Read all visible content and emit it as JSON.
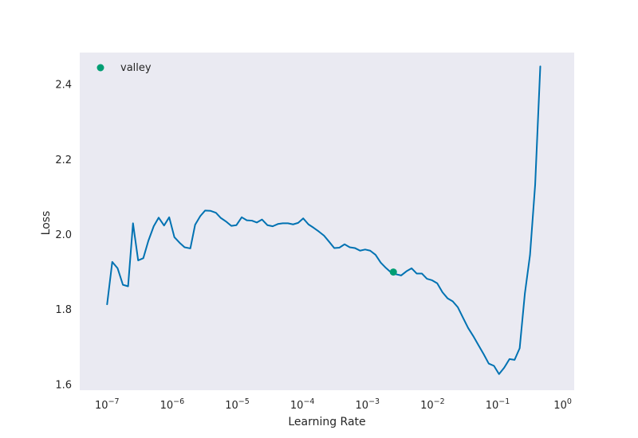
{
  "chart_data": {
    "type": "line",
    "xlabel": "Learning Rate",
    "ylabel": "Loss",
    "x_scale": "log",
    "xlim": [
      3.8e-08,
      1.5
    ],
    "ylim": [
      1.585,
      2.485
    ],
    "x_ticks": [
      {
        "value": 1e-07,
        "base": "10",
        "exp": "−7"
      },
      {
        "value": 1e-06,
        "base": "10",
        "exp": "−6"
      },
      {
        "value": 1e-05,
        "base": "10",
        "exp": "−5"
      },
      {
        "value": 0.0001,
        "base": "10",
        "exp": "−4"
      },
      {
        "value": 0.001,
        "base": "10",
        "exp": "−3"
      },
      {
        "value": 0.01,
        "base": "10",
        "exp": "−2"
      },
      {
        "value": 0.1,
        "base": "10",
        "exp": "−1"
      },
      {
        "value": 1,
        "base": "10",
        "exp": "0"
      }
    ],
    "y_ticks": [
      {
        "value": 1.6,
        "label": "1.6"
      },
      {
        "value": 1.8,
        "label": "1.8"
      },
      {
        "value": 2.0,
        "label": "2.0"
      },
      {
        "value": 2.2,
        "label": "2.2"
      },
      {
        "value": 2.4,
        "label": "2.4"
      }
    ],
    "grid": false,
    "background": "#eaeaf2",
    "legend": {
      "position": "upper-left",
      "entries": [
        {
          "label": "valley",
          "color": "#009e73",
          "marker": "circle"
        }
      ]
    },
    "series": [
      {
        "color": "#0072b2",
        "points": [
          [
            1e-07,
            1.814
          ],
          [
            1.2e-07,
            1.927
          ],
          [
            1.45e-07,
            1.91
          ],
          [
            1.75e-07,
            1.866
          ],
          [
            2.1e-07,
            1.862
          ],
          [
            2.5e-07,
            2.03
          ],
          [
            3e-07,
            1.931
          ],
          [
            3.6e-07,
            1.937
          ],
          [
            4.3e-07,
            1.983
          ],
          [
            5.2e-07,
            2.022
          ],
          [
            6.2e-07,
            2.045
          ],
          [
            7.5e-07,
            2.024
          ],
          [
            9e-07,
            2.046
          ],
          [
            1.08e-06,
            1.993
          ],
          [
            1.3e-06,
            1.978
          ],
          [
            1.55e-06,
            1.966
          ],
          [
            1.9e-06,
            1.963
          ],
          [
            2.25e-06,
            2.026
          ],
          [
            2.7e-06,
            2.049
          ],
          [
            3.2e-06,
            2.064
          ],
          [
            3.9e-06,
            2.063
          ],
          [
            4.7e-06,
            2.058
          ],
          [
            5.6e-06,
            2.044
          ],
          [
            6.8e-06,
            2.034
          ],
          [
            8.1e-06,
            2.023
          ],
          [
            9.7e-06,
            2.025
          ],
          [
            1.17e-05,
            2.046
          ],
          [
            1.4e-05,
            2.038
          ],
          [
            1.68e-05,
            2.037
          ],
          [
            2e-05,
            2.032
          ],
          [
            2.4e-05,
            2.04
          ],
          [
            2.9e-05,
            2.025
          ],
          [
            3.5e-05,
            2.022
          ],
          [
            4.2e-05,
            2.028
          ],
          [
            5e-05,
            2.03
          ],
          [
            6e-05,
            2.03
          ],
          [
            7.2e-05,
            2.027
          ],
          [
            8.6e-05,
            2.031
          ],
          [
            0.000103,
            2.043
          ],
          [
            0.000124,
            2.027
          ],
          [
            0.000149,
            2.018
          ],
          [
            0.000179,
            2.008
          ],
          [
            0.000215,
            1.997
          ],
          [
            0.000257,
            1.981
          ],
          [
            0.000309,
            1.964
          ],
          [
            0.00037,
            1.965
          ],
          [
            0.000445,
            1.974
          ],
          [
            0.000534,
            1.966
          ],
          [
            0.00064,
            1.964
          ],
          [
            0.00077,
            1.957
          ],
          [
            0.00092,
            1.96
          ],
          [
            0.0011,
            1.957
          ],
          [
            0.00133,
            1.946
          ],
          [
            0.0016,
            1.925
          ],
          [
            0.00192,
            1.911
          ],
          [
            0.0023,
            1.899
          ],
          [
            0.00276,
            1.894
          ],
          [
            0.0033,
            1.891
          ],
          [
            0.00397,
            1.902
          ],
          [
            0.00477,
            1.91
          ],
          [
            0.0057,
            1.896
          ],
          [
            0.00685,
            1.896
          ],
          [
            0.0082,
            1.882
          ],
          [
            0.00985,
            1.878
          ],
          [
            0.0118,
            1.87
          ],
          [
            0.0142,
            1.846
          ],
          [
            0.017,
            1.83
          ],
          [
            0.0204,
            1.822
          ],
          [
            0.0245,
            1.806
          ],
          [
            0.0294,
            1.778
          ],
          [
            0.0352,
            1.751
          ],
          [
            0.0423,
            1.729
          ],
          [
            0.0508,
            1.705
          ],
          [
            0.061,
            1.681
          ],
          [
            0.073,
            1.656
          ],
          [
            0.0877,
            1.65
          ],
          [
            0.105,
            1.628
          ],
          [
            0.126,
            1.645
          ],
          [
            0.152,
            1.668
          ],
          [
            0.182,
            1.666
          ],
          [
            0.218,
            1.697
          ],
          [
            0.262,
            1.843
          ],
          [
            0.314,
            1.945
          ],
          [
            0.377,
            2.133
          ],
          [
            0.452,
            2.448
          ]
        ]
      }
    ],
    "markers": [
      {
        "label": "valley",
        "x": 0.0025,
        "y": 1.9,
        "color": "#009e73"
      }
    ]
  }
}
